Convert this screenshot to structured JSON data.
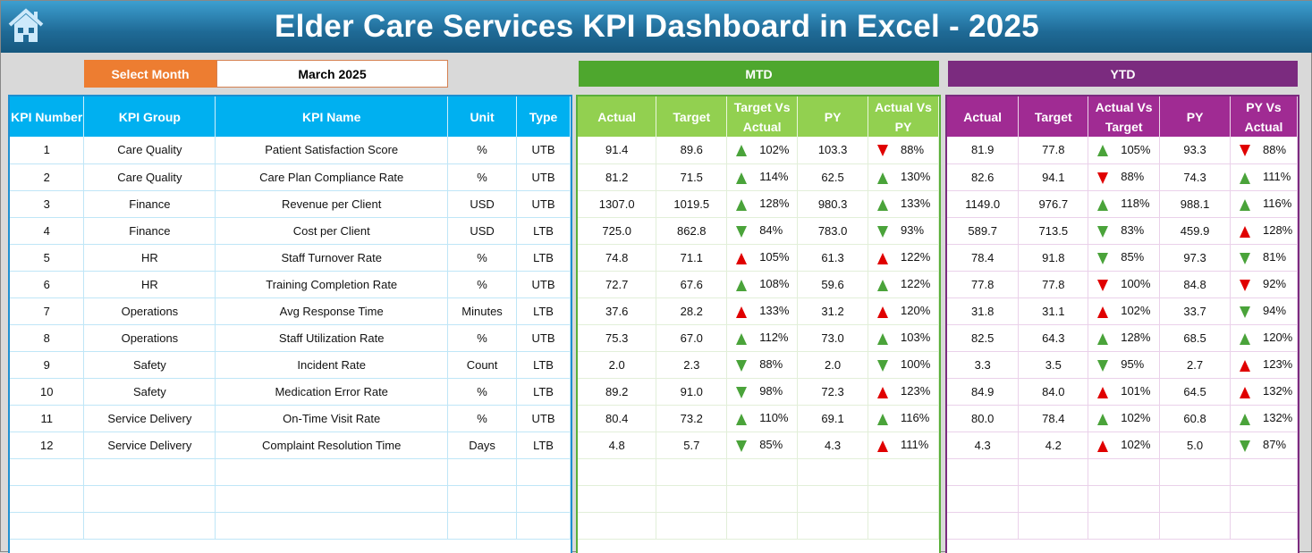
{
  "title": "Elder Care Services KPI Dashboard in Excel - 2025",
  "colors": {
    "title_bar": "#1f6a96",
    "select_label": "#ed7d31",
    "kpi_header": "#00b0f0",
    "mtd": "#4ea72e",
    "mtd_header": "#92d050",
    "ytd": "#7b2b7f",
    "ytd_header": "#a02b93",
    "good": "#4aa33a",
    "bad": "#e00000"
  },
  "icons": {
    "home": "home-icon",
    "indicator_up": "triangle-up-icon",
    "indicator_down": "triangle-down-icon"
  },
  "select_month": {
    "label": "Select Month",
    "value": "March 2025"
  },
  "mtd_label": "MTD",
  "ytd_label": "YTD",
  "kpi_headers": [
    "KPI Number",
    "KPI Group",
    "KPI Name",
    "Unit",
    "Type"
  ],
  "mtd_headers": [
    "Actual",
    "Target",
    "Target Vs Actual",
    "PY",
    "Actual Vs PY"
  ],
  "ytd_headers": [
    "Actual",
    "Target",
    "Actual Vs Target",
    "PY",
    "PY Vs Actual"
  ],
  "kpis": [
    [
      "1",
      "Care Quality",
      "Patient Satisfaction Score",
      "%",
      "UTB"
    ],
    [
      "2",
      "Care Quality",
      "Care Plan Compliance Rate",
      "%",
      "UTB"
    ],
    [
      "3",
      "Finance",
      "Revenue per Client",
      "USD",
      "UTB"
    ],
    [
      "4",
      "Finance",
      "Cost per Client",
      "USD",
      "LTB"
    ],
    [
      "5",
      "HR",
      "Staff Turnover Rate",
      "%",
      "LTB"
    ],
    [
      "6",
      "HR",
      "Training Completion Rate",
      "%",
      "UTB"
    ],
    [
      "7",
      "Operations",
      "Avg Response Time",
      "Minutes",
      "LTB"
    ],
    [
      "8",
      "Operations",
      "Staff Utilization Rate",
      "%",
      "UTB"
    ],
    [
      "9",
      "Safety",
      "Incident Rate",
      "Count",
      "LTB"
    ],
    [
      "10",
      "Safety",
      "Medication Error Rate",
      "%",
      "LTB"
    ],
    [
      "11",
      "Service Delivery",
      "On-Time Visit Rate",
      "%",
      "UTB"
    ],
    [
      "12",
      "Service Delivery",
      "Complaint Resolution Time",
      "Days",
      "LTB"
    ]
  ],
  "mtd": [
    [
      "91.4",
      "89.6",
      {
        "pct": "102%",
        "dir": "up",
        "status": "green"
      },
      "103.3",
      {
        "pct": "88%",
        "dir": "down",
        "status": "red"
      }
    ],
    [
      "81.2",
      "71.5",
      {
        "pct": "114%",
        "dir": "up",
        "status": "green"
      },
      "62.5",
      {
        "pct": "130%",
        "dir": "up",
        "status": "green"
      }
    ],
    [
      "1307.0",
      "1019.5",
      {
        "pct": "128%",
        "dir": "up",
        "status": "green"
      },
      "980.3",
      {
        "pct": "133%",
        "dir": "up",
        "status": "green"
      }
    ],
    [
      "725.0",
      "862.8",
      {
        "pct": "84%",
        "dir": "down",
        "status": "green"
      },
      "783.0",
      {
        "pct": "93%",
        "dir": "down",
        "status": "green"
      }
    ],
    [
      "74.8",
      "71.1",
      {
        "pct": "105%",
        "dir": "up",
        "status": "red"
      },
      "61.3",
      {
        "pct": "122%",
        "dir": "up",
        "status": "red"
      }
    ],
    [
      "72.7",
      "67.6",
      {
        "pct": "108%",
        "dir": "up",
        "status": "green"
      },
      "59.6",
      {
        "pct": "122%",
        "dir": "up",
        "status": "green"
      }
    ],
    [
      "37.6",
      "28.2",
      {
        "pct": "133%",
        "dir": "up",
        "status": "red"
      },
      "31.2",
      {
        "pct": "120%",
        "dir": "up",
        "status": "red"
      }
    ],
    [
      "75.3",
      "67.0",
      {
        "pct": "112%",
        "dir": "up",
        "status": "green"
      },
      "73.0",
      {
        "pct": "103%",
        "dir": "up",
        "status": "green"
      }
    ],
    [
      "2.0",
      "2.3",
      {
        "pct": "88%",
        "dir": "down",
        "status": "green"
      },
      "2.0",
      {
        "pct": "100%",
        "dir": "down",
        "status": "green"
      }
    ],
    [
      "89.2",
      "91.0",
      {
        "pct": "98%",
        "dir": "down",
        "status": "green"
      },
      "72.3",
      {
        "pct": "123%",
        "dir": "up",
        "status": "red"
      }
    ],
    [
      "80.4",
      "73.2",
      {
        "pct": "110%",
        "dir": "up",
        "status": "green"
      },
      "69.1",
      {
        "pct": "116%",
        "dir": "up",
        "status": "green"
      }
    ],
    [
      "4.8",
      "5.7",
      {
        "pct": "85%",
        "dir": "down",
        "status": "green"
      },
      "4.3",
      {
        "pct": "111%",
        "dir": "up",
        "status": "red"
      }
    ]
  ],
  "ytd": [
    [
      "81.9",
      "77.8",
      {
        "pct": "105%",
        "dir": "up",
        "status": "green"
      },
      "93.3",
      {
        "pct": "88%",
        "dir": "down",
        "status": "red"
      }
    ],
    [
      "82.6",
      "94.1",
      {
        "pct": "88%",
        "dir": "down",
        "status": "red"
      },
      "74.3",
      {
        "pct": "111%",
        "dir": "up",
        "status": "green"
      }
    ],
    [
      "1149.0",
      "976.7",
      {
        "pct": "118%",
        "dir": "up",
        "status": "green"
      },
      "988.1",
      {
        "pct": "116%",
        "dir": "up",
        "status": "green"
      }
    ],
    [
      "589.7",
      "713.5",
      {
        "pct": "83%",
        "dir": "down",
        "status": "green"
      },
      "459.9",
      {
        "pct": "128%",
        "dir": "up",
        "status": "red"
      }
    ],
    [
      "78.4",
      "91.8",
      {
        "pct": "85%",
        "dir": "down",
        "status": "green"
      },
      "97.3",
      {
        "pct": "81%",
        "dir": "down",
        "status": "green"
      }
    ],
    [
      "77.8",
      "77.8",
      {
        "pct": "100%",
        "dir": "down",
        "status": "red"
      },
      "84.8",
      {
        "pct": "92%",
        "dir": "down",
        "status": "red"
      }
    ],
    [
      "31.8",
      "31.1",
      {
        "pct": "102%",
        "dir": "up",
        "status": "red"
      },
      "33.7",
      {
        "pct": "94%",
        "dir": "down",
        "status": "green"
      }
    ],
    [
      "82.5",
      "64.3",
      {
        "pct": "128%",
        "dir": "up",
        "status": "green"
      },
      "68.5",
      {
        "pct": "120%",
        "dir": "up",
        "status": "green"
      }
    ],
    [
      "3.3",
      "3.5",
      {
        "pct": "95%",
        "dir": "down",
        "status": "green"
      },
      "2.7",
      {
        "pct": "123%",
        "dir": "up",
        "status": "red"
      }
    ],
    [
      "84.9",
      "84.0",
      {
        "pct": "101%",
        "dir": "up",
        "status": "red"
      },
      "64.5",
      {
        "pct": "132%",
        "dir": "up",
        "status": "red"
      }
    ],
    [
      "80.0",
      "78.4",
      {
        "pct": "102%",
        "dir": "up",
        "status": "green"
      },
      "60.8",
      {
        "pct": "132%",
        "dir": "up",
        "status": "green"
      }
    ],
    [
      "4.3",
      "4.2",
      {
        "pct": "102%",
        "dir": "up",
        "status": "red"
      },
      "5.0",
      {
        "pct": "87%",
        "dir": "down",
        "status": "green"
      }
    ]
  ]
}
